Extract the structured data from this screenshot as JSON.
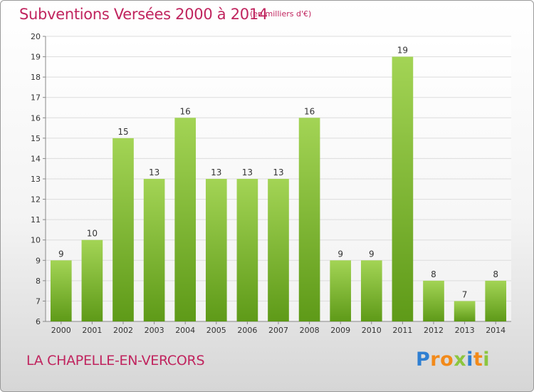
{
  "header": {
    "title": "Subventions Versées 2000 à 2014",
    "unit": "(en milliers d'€)"
  },
  "footer": {
    "commune": "LA CHAPELLE-EN-VERCORS",
    "logo_letters": [
      {
        "ch": "P",
        "color": "#2f7fd2"
      },
      {
        "ch": "r",
        "color": "#f28a1a"
      },
      {
        "ch": "o",
        "color": "#f28a1a"
      },
      {
        "ch": "x",
        "color": "#8cc63f"
      },
      {
        "ch": "i",
        "color": "#2f7fd2"
      },
      {
        "ch": "t",
        "color": "#f28a1a"
      },
      {
        "ch": "i",
        "color": "#8cc63f"
      }
    ]
  },
  "colors": {
    "title": "#c0245e",
    "bar_light": "#9fd24e",
    "bar_dark": "#5e9a18",
    "grid": "#dcdcdc",
    "axis_text": "#333333"
  },
  "chart_data": {
    "type": "bar",
    "title": "Subventions Versées 2000 à 2014",
    "ylabel": "",
    "xlabel": "",
    "ylim": [
      6,
      20
    ],
    "yticks": [
      6,
      7,
      8,
      9,
      10,
      11,
      12,
      13,
      14,
      15,
      16,
      17,
      18,
      19,
      20
    ],
    "grid": true,
    "categories": [
      "2000",
      "2001",
      "2002",
      "2003",
      "2004",
      "2005",
      "2006",
      "2007",
      "2008",
      "2009",
      "2010",
      "2011",
      "2012",
      "2013",
      "2014"
    ],
    "values": [
      9,
      10,
      15,
      13,
      16,
      13,
      13,
      13,
      16,
      9,
      9,
      19,
      8,
      7,
      8
    ]
  }
}
